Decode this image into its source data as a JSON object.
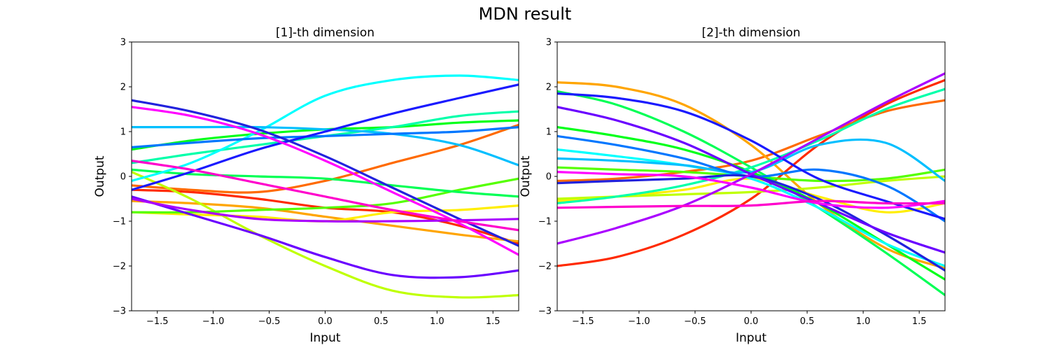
{
  "figure": {
    "title": "MDN result"
  },
  "chart_data": [
    {
      "type": "line",
      "title": "[1]-th dimension",
      "xlabel": "Input",
      "ylabel": "Output",
      "xlim": [
        -1.73,
        1.73
      ],
      "ylim": [
        -3,
        3
      ],
      "xticks": [
        -1.5,
        -1.0,
        -0.5,
        0.0,
        0.5,
        1.0,
        1.5
      ],
      "xtick_labels": [
        "−1.5",
        "−1.0",
        "−0.5",
        "0.0",
        "0.5",
        "1.0",
        "1.5"
      ],
      "yticks": [
        -3,
        -2,
        -1,
        0,
        1,
        2,
        3
      ],
      "ytick_labels": [
        "−3",
        "−2",
        "−1",
        "0",
        "1",
        "2",
        "3"
      ],
      "grid": false,
      "x": [
        -1.73,
        -1.2,
        -0.6,
        0.0,
        0.6,
        1.2,
        1.73
      ],
      "series": [
        {
          "color": "#ff2a00",
          "values": [
            -0.3,
            -0.35,
            -0.5,
            -0.7,
            -0.8,
            -1.1,
            -1.5
          ]
        },
        {
          "color": "#ff6a00",
          "values": [
            -0.2,
            -0.3,
            -0.35,
            -0.1,
            0.3,
            0.7,
            1.15
          ]
        },
        {
          "color": "#ffa500",
          "values": [
            -0.55,
            -0.6,
            -0.7,
            -0.9,
            -1.1,
            -1.3,
            -1.45
          ]
        },
        {
          "color": "#ffee00",
          "values": [
            -0.8,
            -0.85,
            -0.9,
            -1.0,
            -0.8,
            -0.75,
            -0.65
          ]
        },
        {
          "color": "#bfff00",
          "values": [
            0.1,
            -0.5,
            -1.3,
            -2.0,
            -2.55,
            -2.7,
            -2.65
          ]
        },
        {
          "color": "#55ff00",
          "values": [
            -0.8,
            -0.8,
            -0.75,
            -0.7,
            -0.6,
            -0.3,
            -0.05
          ]
        },
        {
          "color": "#00ff55",
          "values": [
            0.15,
            0.05,
            0.0,
            -0.05,
            -0.2,
            -0.35,
            -0.45
          ]
        },
        {
          "color": "#00ff1a",
          "values": [
            0.6,
            0.8,
            0.95,
            1.05,
            1.1,
            1.2,
            1.25
          ]
        },
        {
          "color": "#00ffaa",
          "values": [
            0.3,
            0.5,
            0.7,
            0.9,
            1.1,
            1.35,
            1.45
          ]
        },
        {
          "color": "#00ffff",
          "values": [
            -0.1,
            0.3,
            1.0,
            1.8,
            2.15,
            2.25,
            2.15
          ]
        },
        {
          "color": "#00bfff",
          "values": [
            1.1,
            1.1,
            1.1,
            1.05,
            0.95,
            0.7,
            0.25
          ]
        },
        {
          "color": "#0077ff",
          "values": [
            0.65,
            0.75,
            0.85,
            0.9,
            0.95,
            1.0,
            1.1
          ]
        },
        {
          "color": "#1a1aff",
          "values": [
            -0.3,
            0.1,
            0.6,
            1.0,
            1.4,
            1.75,
            2.05
          ]
        },
        {
          "color": "#2222dd",
          "values": [
            1.7,
            1.45,
            1.05,
            0.45,
            -0.25,
            -0.95,
            -1.55
          ]
        },
        {
          "color": "#6a00ff",
          "values": [
            -0.45,
            -0.85,
            -1.3,
            -1.8,
            -2.2,
            -2.25,
            -2.1
          ]
        },
        {
          "color": "#aa00ff",
          "values": [
            -0.5,
            -0.75,
            -0.95,
            -1.0,
            -1.0,
            -0.98,
            -0.95
          ]
        },
        {
          "color": "#ff00ff",
          "values": [
            1.55,
            1.35,
            0.95,
            0.35,
            -0.35,
            -1.05,
            -1.75
          ]
        },
        {
          "color": "#ff00cc",
          "values": [
            0.35,
            0.15,
            -0.15,
            -0.45,
            -0.75,
            -1.0,
            -1.2
          ]
        }
      ]
    },
    {
      "type": "line",
      "title": "[2]-th dimension",
      "xlabel": "Input",
      "ylabel": "Output",
      "xlim": [
        -1.73,
        1.73
      ],
      "ylim": [
        -3,
        3
      ],
      "xticks": [
        -1.5,
        -1.0,
        -0.5,
        0.0,
        0.5,
        1.0,
        1.5
      ],
      "xtick_labels": [
        "−1.5",
        "−1.0",
        "−0.5",
        "0.0",
        "0.5",
        "1.0",
        "1.5"
      ],
      "yticks": [
        -3,
        -2,
        -1,
        0,
        1,
        2,
        3
      ],
      "ytick_labels": [
        "−3",
        "−2",
        "−1",
        "0",
        "1",
        "2",
        "3"
      ],
      "grid": false,
      "x": [
        -1.73,
        -1.2,
        -0.6,
        0.0,
        0.6,
        1.2,
        1.73
      ],
      "series": [
        {
          "color": "#ff2a00",
          "values": [
            -2.0,
            -1.8,
            -1.3,
            -0.5,
            0.7,
            1.6,
            2.15
          ]
        },
        {
          "color": "#ff6a00",
          "values": [
            -0.1,
            -0.05,
            0.1,
            0.35,
            0.9,
            1.45,
            1.7
          ]
        },
        {
          "color": "#ffa500",
          "values": [
            2.1,
            2.0,
            1.6,
            0.7,
            -0.6,
            -1.6,
            -2.05
          ]
        },
        {
          "color": "#ffee00",
          "values": [
            -0.55,
            -0.45,
            -0.3,
            -0.05,
            -0.45,
            -0.8,
            -0.6
          ]
        },
        {
          "color": "#bfff00",
          "values": [
            -0.5,
            -0.45,
            -0.4,
            -0.35,
            -0.25,
            -0.1,
            0.0
          ]
        },
        {
          "color": "#55ff00",
          "values": [
            0.2,
            0.15,
            0.1,
            0.0,
            -0.1,
            -0.05,
            0.15
          ]
        },
        {
          "color": "#00ff55",
          "values": [
            1.9,
            1.6,
            1.0,
            0.2,
            -0.7,
            -1.7,
            -2.65
          ]
        },
        {
          "color": "#00ff1a",
          "values": [
            1.1,
            0.9,
            0.6,
            0.1,
            -0.6,
            -1.5,
            -2.3
          ]
        },
        {
          "color": "#00ffaa",
          "values": [
            -0.6,
            -0.45,
            -0.2,
            0.2,
            0.8,
            1.5,
            1.95
          ]
        },
        {
          "color": "#00ffff",
          "values": [
            0.6,
            0.45,
            0.25,
            -0.05,
            -0.7,
            -1.5,
            -2.0
          ]
        },
        {
          "color": "#00bfff",
          "values": [
            0.4,
            0.35,
            0.25,
            0.1,
            0.7,
            0.75,
            -0.1
          ]
        },
        {
          "color": "#0077ff",
          "values": [
            0.9,
            0.7,
            0.4,
            0.0,
            0.15,
            -0.2,
            -1.0
          ]
        },
        {
          "color": "#1a1aff",
          "values": [
            1.85,
            1.75,
            1.45,
            0.8,
            -0.05,
            -0.55,
            -0.95
          ]
        },
        {
          "color": "#2222dd",
          "values": [
            -0.15,
            -0.1,
            -0.05,
            0.0,
            -0.5,
            -1.3,
            -2.1
          ]
        },
        {
          "color": "#6a00ff",
          "values": [
            1.55,
            1.25,
            0.75,
            0.05,
            -0.6,
            -1.25,
            -1.7
          ]
        },
        {
          "color": "#aa00ff",
          "values": [
            -1.5,
            -1.15,
            -0.65,
            0.05,
            0.85,
            1.65,
            2.3
          ]
        },
        {
          "color": "#ff00ff",
          "values": [
            0.1,
            0.05,
            0.0,
            -0.25,
            -0.6,
            -0.7,
            -0.55
          ]
        },
        {
          "color": "#ff00cc",
          "values": [
            -0.7,
            -0.68,
            -0.66,
            -0.65,
            -0.55,
            -0.6,
            -0.6
          ]
        }
      ]
    }
  ]
}
